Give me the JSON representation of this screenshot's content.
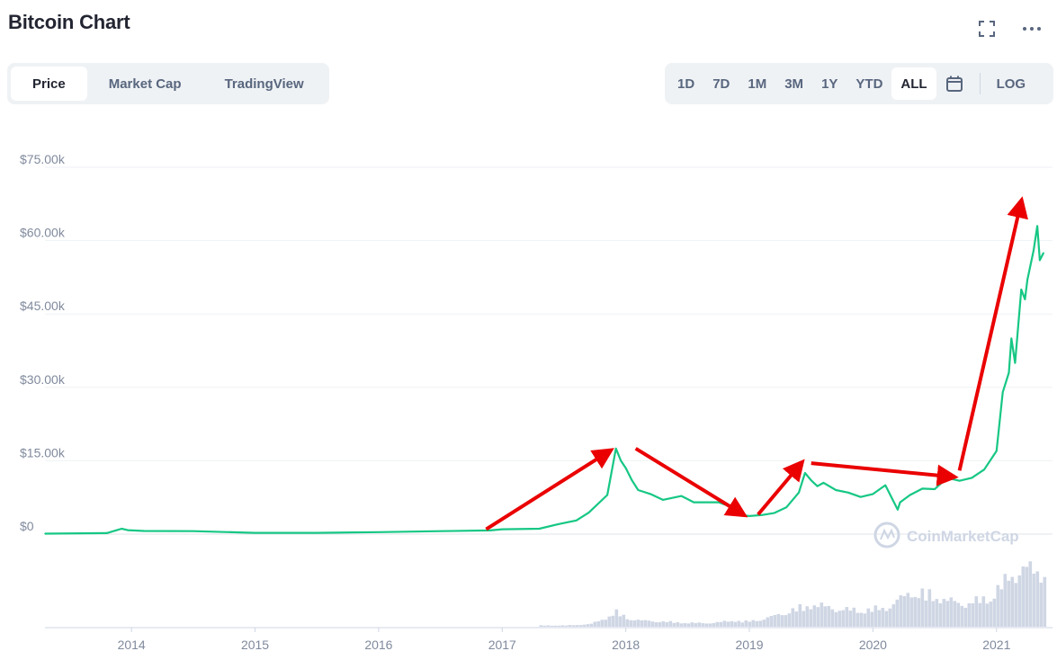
{
  "header": {
    "title": "Bitcoin Chart",
    "icons": [
      "fullscreen-icon",
      "more-icon"
    ]
  },
  "tabs": [
    {
      "label": "Price",
      "active": true
    },
    {
      "label": "Market Cap",
      "active": false
    },
    {
      "label": "TradingView",
      "active": false
    }
  ],
  "ranges": [
    {
      "label": "1D",
      "active": false
    },
    {
      "label": "7D",
      "active": false
    },
    {
      "label": "1M",
      "active": false
    },
    {
      "label": "3M",
      "active": false
    },
    {
      "label": "1Y",
      "active": false
    },
    {
      "label": "YTD",
      "active": false
    },
    {
      "label": "ALL",
      "active": true
    }
  ],
  "calendar_icon": "calendar-icon",
  "log_label": "LOG",
  "watermark": "CoinMarketCap",
  "colors": {
    "price_line": "#16c784",
    "volume_bars": "#cfd6e4",
    "arrows": "#ea0000",
    "grid": "#eff2f5"
  },
  "chart_data": {
    "type": "line",
    "title": "",
    "xlabel": "",
    "ylabel": "",
    "y_tick_labels": [
      "$0",
      "$15.00k",
      "$30.00k",
      "$45.00k",
      "$60.00k",
      "$75.00k"
    ],
    "y_ticks": [
      0,
      15000,
      30000,
      45000,
      60000,
      75000
    ],
    "x_tick_labels": [
      "2014",
      "2015",
      "2016",
      "2017",
      "2018",
      "2019",
      "2020",
      "2021"
    ],
    "x_ticks": [
      2014,
      2015,
      2016,
      2017,
      2018,
      2019,
      2020,
      2021
    ],
    "xlim": [
      2013.3,
      2021.38
    ],
    "ylim": [
      0,
      75000
    ],
    "grid": true,
    "series": [
      {
        "type": "line",
        "x": [
          2013.3,
          2013.8,
          2013.92,
          2013.97,
          2014.1,
          2014.5,
          2015.0,
          2015.5,
          2016.0,
          2016.5,
          2016.9,
          2017.0,
          2017.3,
          2017.45,
          2017.6,
          2017.7,
          2017.85,
          2017.92,
          2017.96,
          2018.0,
          2018.05,
          2018.1,
          2018.2,
          2018.3,
          2018.45,
          2018.55,
          2018.75,
          2018.85,
          2018.9,
          2019.0,
          2019.1,
          2019.2,
          2019.3,
          2019.4,
          2019.45,
          2019.5,
          2019.55,
          2019.6,
          2019.7,
          2019.8,
          2019.9,
          2020.0,
          2020.1,
          2020.2,
          2020.22,
          2020.3,
          2020.4,
          2020.5,
          2020.6,
          2020.7,
          2020.8,
          2020.9,
          2021.0,
          2021.05,
          2021.1,
          2021.12,
          2021.15,
          2021.2,
          2021.23,
          2021.25,
          2021.3,
          2021.33,
          2021.35,
          2021.38
        ],
        "y": [
          100,
          200,
          1100,
          800,
          650,
          600,
          250,
          250,
          400,
          600,
          750,
          1000,
          1100,
          2000,
          2800,
          4400,
          8000,
          17500,
          15000,
          13500,
          11000,
          9000,
          8200,
          7000,
          7800,
          6500,
          6500,
          5600,
          4000,
          3700,
          3900,
          4300,
          5500,
          8500,
          12500,
          11000,
          9800,
          10500,
          9000,
          8500,
          7600,
          8200,
          10000,
          5000,
          6500,
          8000,
          9300,
          9200,
          11500,
          10900,
          11500,
          13200,
          17000,
          29000,
          33000,
          40000,
          35000,
          50000,
          48000,
          52000,
          58000,
          63000,
          56000,
          57500
        ]
      }
    ],
    "volume": {
      "x": [
        2017.3,
        2017.5,
        2017.7,
        2017.85,
        2017.9,
        2018.0,
        2018.1,
        2018.3,
        2018.5,
        2018.7,
        2018.85,
        2018.95,
        2019.1,
        2019.3,
        2019.5,
        2019.7,
        2019.9,
        2020.1,
        2020.3,
        2020.5,
        2020.7,
        2020.9,
        2021.0,
        2021.1,
        2021.2,
        2021.3,
        2021.38
      ],
      "values": [
        1,
        1,
        2,
        8,
        12,
        7,
        5,
        4,
        3,
        3,
        5,
        4,
        6,
        12,
        18,
        14,
        13,
        15,
        28,
        24,
        18,
        22,
        30,
        40,
        47,
        44,
        43
      ]
    },
    "annotations": [
      {
        "type": "arrow",
        "from": [
          2016.87,
          1000
        ],
        "to": [
          2017.87,
          17000
        ]
      },
      {
        "type": "arrow",
        "from": [
          2018.08,
          17500
        ],
        "to": [
          2018.95,
          4000
        ]
      },
      {
        "type": "arrow",
        "from": [
          2019.07,
          4000
        ],
        "to": [
          2019.42,
          14500
        ]
      },
      {
        "type": "arrow",
        "from": [
          2019.5,
          14500
        ],
        "to": [
          2020.65,
          11700
        ]
      },
      {
        "type": "arrow",
        "from": [
          2020.7,
          13000
        ],
        "to": [
          2021.2,
          68000
        ]
      }
    ]
  }
}
